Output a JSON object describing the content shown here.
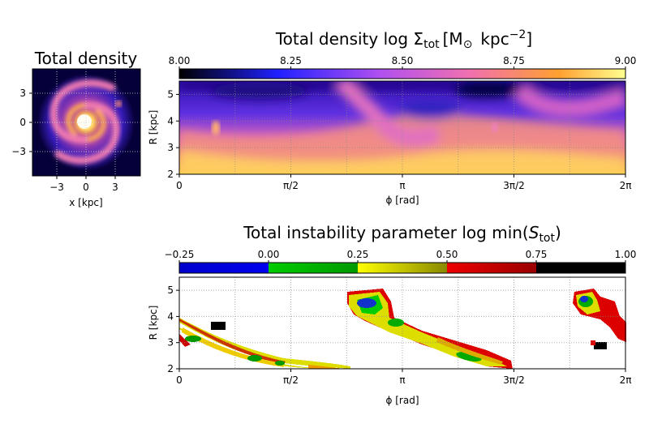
{
  "figure": {
    "panels": [
      {
        "id": "disk",
        "title": "Total density",
        "xlabel": "x [kpc]",
        "xticks": [
          {
            "v": -3,
            "t": "−3"
          },
          {
            "v": 0,
            "t": "0"
          },
          {
            "v": 3,
            "t": "3"
          }
        ],
        "yticks": [
          {
            "v": 3,
            "t": "3"
          },
          {
            "v": 0,
            "t": "0"
          },
          {
            "v": -3,
            "t": "−3"
          }
        ]
      },
      {
        "id": "density-map",
        "title": "Total density log Σ",
        "title_sub": "tot",
        "title_unit": "[M",
        "title_sun": "⊙",
        "title_unit2": "kpc",
        "title_sup": "−2",
        "title_end": "]",
        "xlabel": "ϕ [rad]",
        "ylabel": "R [kpc]",
        "colorbar_ticks": [
          "8.00",
          "8.25",
          "8.50",
          "8.75",
          "9.00"
        ]
      },
      {
        "id": "instability-map",
        "title": "Total instability parameter log min(",
        "title_var": "S",
        "title_sub": "tot",
        "title_end": ")",
        "xlabel": "ϕ [rad]",
        "ylabel": "R [kpc]",
        "colorbar_ticks": [
          "−0.25",
          "0.00",
          "0.25",
          "0.50",
          "0.75",
          "1.00"
        ]
      }
    ]
  },
  "chart_data": [
    {
      "type": "heatmap",
      "title": "Total density",
      "xlabel": "x [kpc]",
      "ylabel": "",
      "xlim": [
        -5.6,
        5.6
      ],
      "ylim": [
        -5.6,
        5.6
      ],
      "colormap": "plasma-like (black-blue-magenta-orange-yellow)",
      "grid": true
    },
    {
      "type": "heatmap",
      "title": "Total density log Σtot [M⊙ kpc−2]",
      "xlabel": "ϕ [rad]",
      "ylabel": "R [kpc]",
      "xlim": [
        0,
        6.2832
      ],
      "ylim": [
        2,
        5.5
      ],
      "x_tick_labels": [
        "0",
        "π/2",
        "π",
        "3π/2",
        "2π"
      ],
      "y_tick_labels": [
        "2",
        "3",
        "4",
        "5"
      ],
      "colorbar": {
        "range": [
          8.0,
          9.0
        ],
        "ticks": [
          "8.00",
          "8.25",
          "8.50",
          "8.75",
          "9.00"
        ],
        "colors": [
          "#000000",
          "#2020ff",
          "#b050f0",
          "#f070b0",
          "#ffa030",
          "#ffff90"
        ],
        "position": "top"
      },
      "features": [
        {
          "name": "dense band",
          "phi_start": 0.0,
          "R_start": 2.6,
          "phi_end": 6.28,
          "R_end": 3.6,
          "peak_log_sigma": 8.85
        },
        {
          "name": "upper arm",
          "phi_start": 2.0,
          "R_start": 5.2,
          "phi_end": 3.4,
          "R_end": 3.6,
          "peak_log_sigma": 8.6
        },
        {
          "name": "clump",
          "phi": 0.7,
          "R": 3.7,
          "log_sigma": 8.8
        },
        {
          "name": "clump",
          "phi": 5.5,
          "R": 4.0,
          "log_sigma": 8.75
        }
      ],
      "grid": true
    },
    {
      "type": "heatmap",
      "title": "Total instability parameter log min(Stot)",
      "xlabel": "ϕ [rad]",
      "ylabel": "R [kpc]",
      "xlim": [
        0,
        6.2832
      ],
      "ylim": [
        2,
        5.5
      ],
      "x_tick_labels": [
        "0",
        "π/2",
        "π",
        "3π/2",
        "2π"
      ],
      "y_tick_labels": [
        "2",
        "3",
        "4",
        "5"
      ],
      "colorbar": {
        "range": [
          -0.25,
          1.0
        ],
        "ticks": [
          "−0.25",
          "0.00",
          "0.25",
          "0.50",
          "0.75",
          "1.00"
        ],
        "colors": [
          "#0000cc",
          "#00cc00",
          "#dddd00",
          "#dd0000",
          "#000000"
        ],
        "position": "top"
      },
      "regions": [
        {
          "name": "lower-left arm",
          "phi_start": 0.0,
          "R_start": 3.6,
          "phi_end": 2.4,
          "R_end": 2.05
        },
        {
          "name": "upper arm",
          "phi_start": 2.4,
          "R_start": 4.7,
          "phi_end": 4.55,
          "R_end": 2.2
        },
        {
          "name": "right arm",
          "phi_start": 5.4,
          "R_start": 4.9,
          "phi_end": 6.2,
          "R_end": 3.5
        },
        {
          "name": "black patch",
          "phi": 0.55,
          "R": 3.65
        },
        {
          "name": "black patch",
          "phi": 5.9,
          "R": 2.85
        }
      ],
      "minimum_log_S": -0.25,
      "grid": true
    }
  ]
}
